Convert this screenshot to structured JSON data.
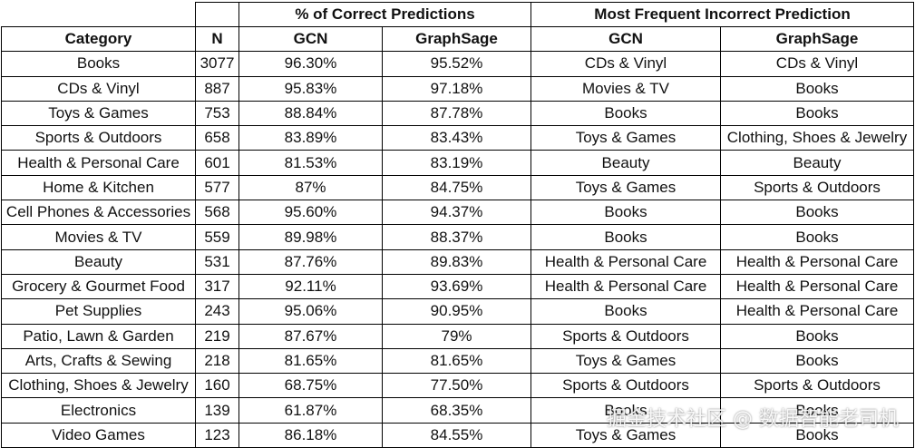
{
  "headers": {
    "group_correct": "% of Correct Predictions",
    "group_incorrect": "Most Frequent Incorrect Prediction",
    "category": "Category",
    "n": "N",
    "gcn": "GCN",
    "graphsage": "GraphSage"
  },
  "rows": [
    {
      "category": "Books",
      "n": "3077",
      "gcn_pct": "96.30%",
      "sage_pct": "95.52%",
      "gcn_wrong": "CDs & Vinyl",
      "sage_wrong": "CDs & Vinyl"
    },
    {
      "category": "CDs & Vinyl",
      "n": "887",
      "gcn_pct": "95.83%",
      "sage_pct": "97.18%",
      "gcn_wrong": "Movies & TV",
      "sage_wrong": "Books"
    },
    {
      "category": "Toys & Games",
      "n": "753",
      "gcn_pct": "88.84%",
      "sage_pct": "87.78%",
      "gcn_wrong": "Books",
      "sage_wrong": "Books"
    },
    {
      "category": "Sports & Outdoors",
      "n": "658",
      "gcn_pct": "83.89%",
      "sage_pct": "83.43%",
      "gcn_wrong": "Toys & Games",
      "sage_wrong": "Clothing, Shoes & Jewelry"
    },
    {
      "category": "Health & Personal Care",
      "n": "601",
      "gcn_pct": "81.53%",
      "sage_pct": "83.19%",
      "gcn_wrong": "Beauty",
      "sage_wrong": "Beauty"
    },
    {
      "category": "Home & Kitchen",
      "n": "577",
      "gcn_pct": "87%",
      "sage_pct": "84.75%",
      "gcn_wrong": "Toys & Games",
      "sage_wrong": "Sports & Outdoors"
    },
    {
      "category": "Cell Phones & Accessories",
      "n": "568",
      "gcn_pct": "95.60%",
      "sage_pct": "94.37%",
      "gcn_wrong": "Books",
      "sage_wrong": "Books"
    },
    {
      "category": "Movies & TV",
      "n": "559",
      "gcn_pct": "89.98%",
      "sage_pct": "88.37%",
      "gcn_wrong": "Books",
      "sage_wrong": "Books"
    },
    {
      "category": "Beauty",
      "n": "531",
      "gcn_pct": "87.76%",
      "sage_pct": "89.83%",
      "gcn_wrong": "Health & Personal Care",
      "sage_wrong": "Health & Personal Care"
    },
    {
      "category": "Grocery & Gourmet Food",
      "n": "317",
      "gcn_pct": "92.11%",
      "sage_pct": "93.69%",
      "gcn_wrong": "Health & Personal Care",
      "sage_wrong": "Health & Personal Care"
    },
    {
      "category": "Pet Supplies",
      "n": "243",
      "gcn_pct": "95.06%",
      "sage_pct": "90.95%",
      "gcn_wrong": "Books",
      "sage_wrong": "Health & Personal Care"
    },
    {
      "category": "Patio, Lawn & Garden",
      "n": "219",
      "gcn_pct": "87.67%",
      "sage_pct": "79%",
      "gcn_wrong": "Sports & Outdoors",
      "sage_wrong": "Books"
    },
    {
      "category": "Arts, Crafts & Sewing",
      "n": "218",
      "gcn_pct": "81.65%",
      "sage_pct": "81.65%",
      "gcn_wrong": "Toys & Games",
      "sage_wrong": "Books"
    },
    {
      "category": "Clothing, Shoes & Jewelry",
      "n": "160",
      "gcn_pct": "68.75%",
      "sage_pct": "77.50%",
      "gcn_wrong": "Sports & Outdoors",
      "sage_wrong": "Sports & Outdoors"
    },
    {
      "category": "Electronics",
      "n": "139",
      "gcn_pct": "61.87%",
      "sage_pct": "68.35%",
      "gcn_wrong": "Books",
      "sage_wrong": "Books"
    },
    {
      "category": "Video Games",
      "n": "123",
      "gcn_pct": "86.18%",
      "sage_pct": "84.55%",
      "gcn_wrong": "Toys & Games",
      "sage_wrong": "Books"
    }
  ],
  "watermark": "掘金技术社区 @ 数据智能老司机"
}
